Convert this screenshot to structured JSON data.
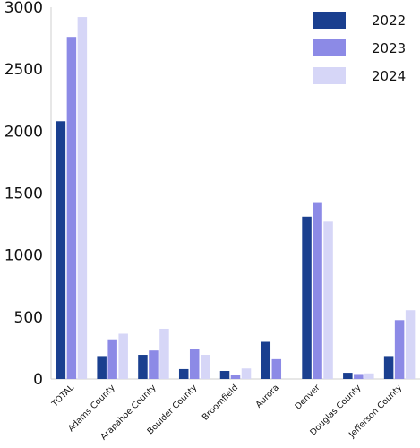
{
  "chart_data": {
    "type": "bar",
    "categories": [
      "TOTAL",
      "Adams County",
      "Arapahoe County",
      "Boulder County",
      "Broomfield",
      "Aurora",
      "Denver",
      "Douglas County",
      "Jefferson County"
    ],
    "series": [
      {
        "name": "2022",
        "color": "#1a3f8f",
        "values": [
          2080,
          185,
          195,
          80,
          65,
          300,
          1310,
          50,
          185
        ]
      },
      {
        "name": "2023",
        "color": "#8c8ae6",
        "values": [
          2760,
          320,
          230,
          240,
          35,
          160,
          1420,
          40,
          475
        ]
      },
      {
        "name": "2024",
        "color": "#d6d6f7",
        "values": [
          2920,
          365,
          405,
          195,
          85,
          0,
          1270,
          45,
          555
        ]
      }
    ],
    "yticks": [
      "0",
      "500",
      "1000",
      "1500",
      "2000",
      "2500",
      "3000"
    ],
    "ylim": [
      0,
      3000
    ],
    "grid": false,
    "legend": "top-right",
    "title": "",
    "xlabel": "",
    "ylabel": ""
  }
}
